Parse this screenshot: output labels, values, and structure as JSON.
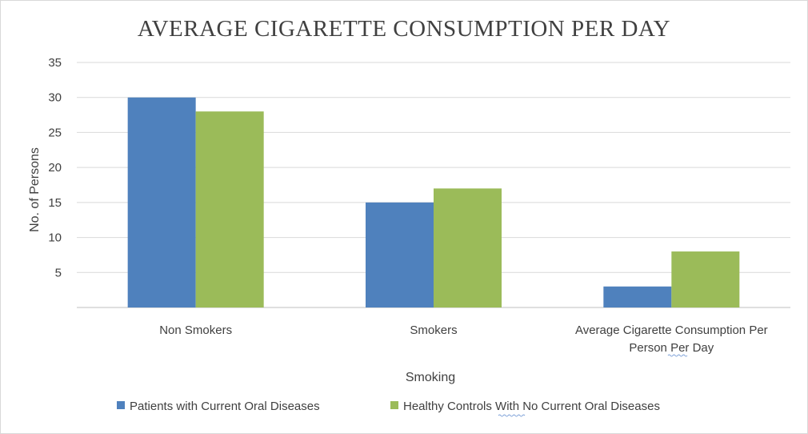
{
  "chart_data": {
    "type": "bar",
    "title": "AVERAGE CIGARETTE CONSUMPTION PER DAY",
    "xlabel": "Smoking",
    "ylabel": "No. of Persons",
    "ylim": [
      0,
      35
    ],
    "yticks": [
      5,
      10,
      15,
      20,
      25,
      30,
      35
    ],
    "grid": true,
    "legend_position": "bottom",
    "categories": [
      [
        "Non Smokers"
      ],
      [
        "Smokers"
      ],
      [
        "Average Cigarette Consumption Per",
        "Person Per Day"
      ]
    ],
    "series": [
      {
        "name": "Patients with Current Oral Diseases",
        "color": "#4f81bd",
        "values": [
          30,
          15,
          3
        ]
      },
      {
        "name": "Healthy Controls With No Current Oral Diseases",
        "color": "#9bbb59",
        "values": [
          28,
          17,
          8
        ]
      }
    ]
  }
}
